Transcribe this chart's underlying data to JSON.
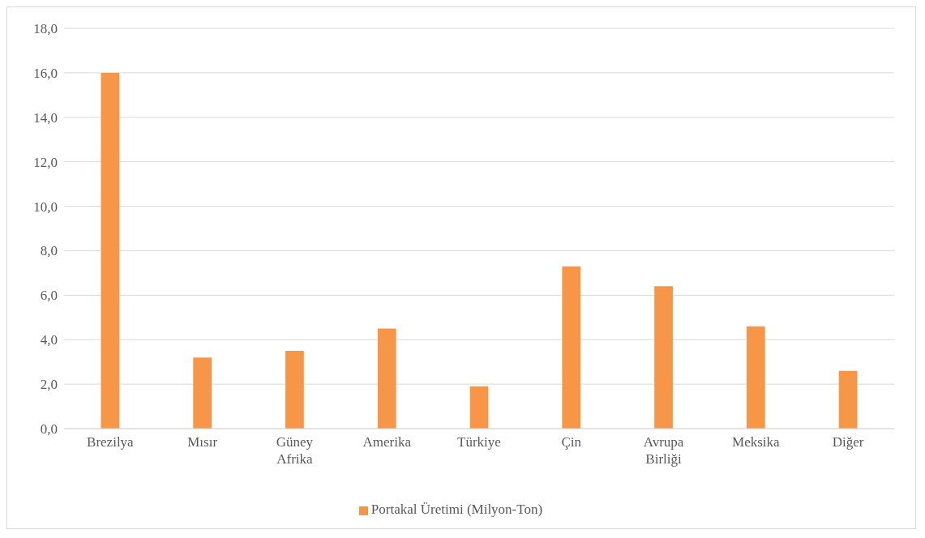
{
  "chart_data": {
    "type": "bar",
    "categories": [
      "Brezilya",
      "Mısır",
      "Güney Afrika",
      "Amerika",
      "Türkiye",
      "Çin",
      "Avrupa Birliği",
      "Meksika",
      "Diğer"
    ],
    "series": [
      {
        "name": "Portakal Üretimi (Milyon-Ton)",
        "color": "#f79646",
        "values": [
          16.0,
          3.2,
          3.5,
          4.5,
          1.9,
          7.3,
          6.4,
          4.6,
          2.6
        ]
      }
    ],
    "ylim": [
      0,
      18
    ],
    "yticks": [
      {
        "value": 0,
        "label": "0,0"
      },
      {
        "value": 2,
        "label": "2,0"
      },
      {
        "value": 4,
        "label": "4,0"
      },
      {
        "value": 6,
        "label": "6,0"
      },
      {
        "value": 8,
        "label": "8,0"
      },
      {
        "value": 10,
        "label": "10,0"
      },
      {
        "value": 12,
        "label": "12,0"
      },
      {
        "value": 14,
        "label": "14,0"
      },
      {
        "value": 16,
        "label": "16,0"
      },
      {
        "value": 18,
        "label": "18,0"
      }
    ],
    "grid": "y",
    "legend": "bottom"
  }
}
